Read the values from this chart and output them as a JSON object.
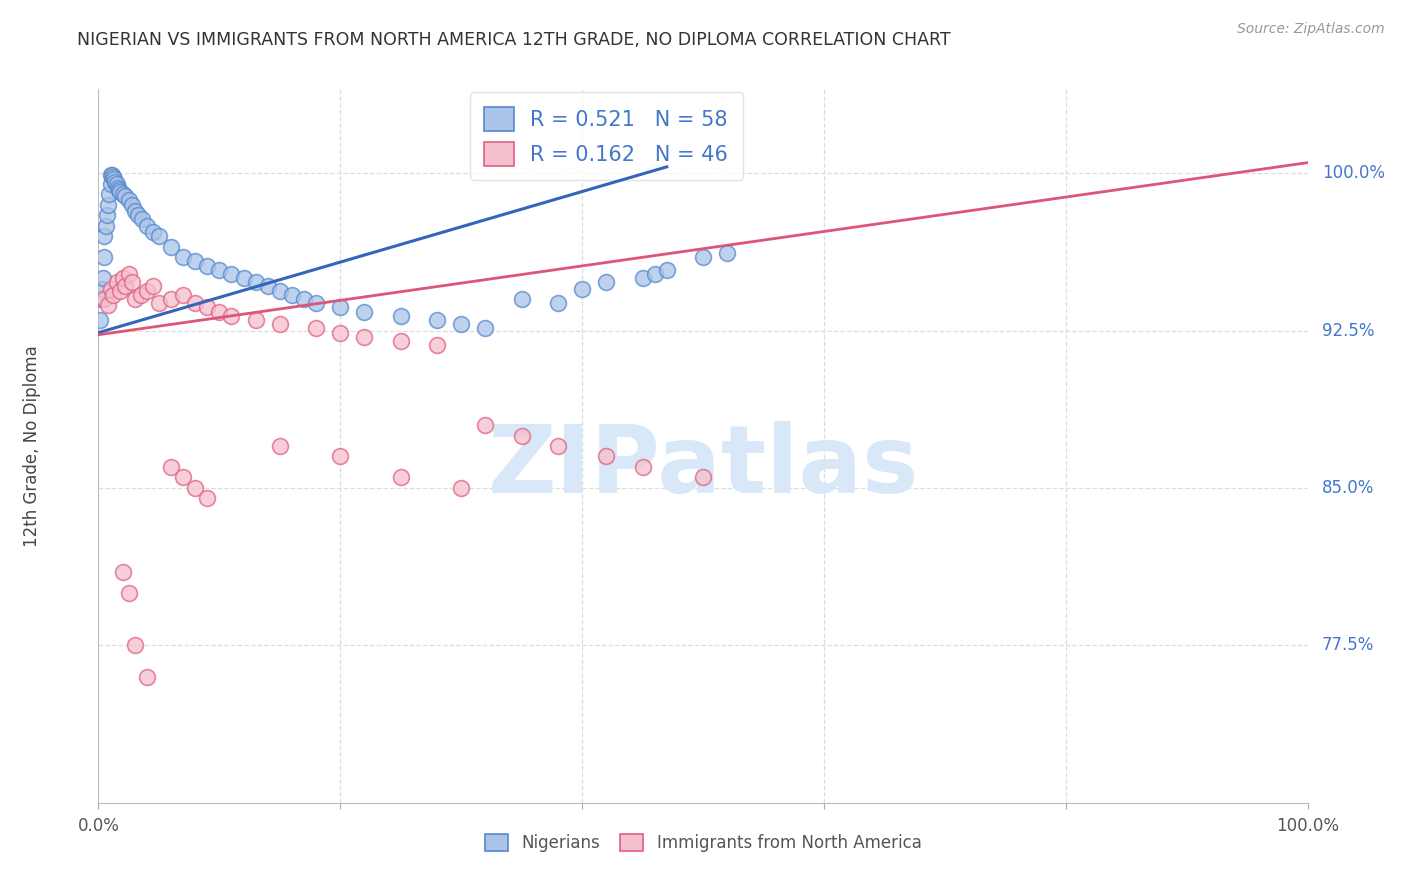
{
  "title": "NIGERIAN VS IMMIGRANTS FROM NORTH AMERICA 12TH GRADE, NO DIPLOMA CORRELATION CHART",
  "source": "Source: ZipAtlas.com",
  "ylabel": "12th Grade, No Diploma",
  "xlim": [
    0.0,
    1.0
  ],
  "ylim": [
    0.7,
    1.04
  ],
  "yticks": [
    0.775,
    0.85,
    0.925,
    1.0
  ],
  "ytick_labels": [
    "77.5%",
    "85.0%",
    "92.5%",
    "100.0%"
  ],
  "xticks": [
    0.0,
    0.2,
    0.4,
    0.6,
    0.8,
    1.0
  ],
  "xtick_labels": [
    "0.0%",
    "",
    "",
    "",
    "",
    "100.0%"
  ],
  "legend_labels": [
    "Nigerians",
    "Immigrants from North America"
  ],
  "blue_R": 0.521,
  "blue_N": 58,
  "pink_R": 0.162,
  "pink_N": 46,
  "blue_fill_color": "#aac4e8",
  "pink_fill_color": "#f5c0ce",
  "blue_edge_color": "#5588cc",
  "pink_edge_color": "#e06080",
  "blue_line_color": "#3366bb",
  "pink_line_color": "#dd5577",
  "blue_scatter_x": [
    0.001,
    0.002,
    0.003,
    0.004,
    0.005,
    0.005,
    0.006,
    0.007,
    0.008,
    0.009,
    0.01,
    0.01,
    0.011,
    0.012,
    0.013,
    0.014,
    0.015,
    0.016,
    0.017,
    0.018,
    0.02,
    0.022,
    0.025,
    0.028,
    0.03,
    0.033,
    0.036,
    0.04,
    0.045,
    0.05,
    0.06,
    0.07,
    0.08,
    0.09,
    0.1,
    0.11,
    0.12,
    0.13,
    0.14,
    0.15,
    0.16,
    0.17,
    0.18,
    0.2,
    0.22,
    0.25,
    0.28,
    0.3,
    0.32,
    0.35,
    0.38,
    0.4,
    0.42,
    0.45,
    0.46,
    0.47,
    0.5,
    0.52
  ],
  "blue_scatter_y": [
    0.93,
    0.94,
    0.945,
    0.95,
    0.96,
    0.97,
    0.975,
    0.98,
    0.985,
    0.99,
    0.995,
    0.999,
    0.999,
    0.998,
    0.997,
    0.996,
    0.995,
    0.993,
    0.992,
    0.991,
    0.99,
    0.989,
    0.987,
    0.985,
    0.982,
    0.98,
    0.978,
    0.975,
    0.972,
    0.97,
    0.965,
    0.96,
    0.958,
    0.956,
    0.954,
    0.952,
    0.95,
    0.948,
    0.946,
    0.944,
    0.942,
    0.94,
    0.938,
    0.936,
    0.934,
    0.932,
    0.93,
    0.928,
    0.926,
    0.94,
    0.938,
    0.945,
    0.948,
    0.95,
    0.952,
    0.954,
    0.96,
    0.962
  ],
  "pink_scatter_x": [
    0.005,
    0.008,
    0.01,
    0.012,
    0.015,
    0.018,
    0.02,
    0.022,
    0.025,
    0.028,
    0.03,
    0.035,
    0.04,
    0.045,
    0.05,
    0.06,
    0.07,
    0.08,
    0.09,
    0.1,
    0.11,
    0.13,
    0.15,
    0.18,
    0.2,
    0.22,
    0.25,
    0.28,
    0.32,
    0.35,
    0.38,
    0.42,
    0.45,
    0.5,
    0.15,
    0.2,
    0.25,
    0.3,
    0.06,
    0.07,
    0.08,
    0.09,
    0.02,
    0.025,
    0.03,
    0.04
  ],
  "pink_scatter_y": [
    0.94,
    0.937,
    0.945,
    0.942,
    0.948,
    0.944,
    0.95,
    0.946,
    0.952,
    0.948,
    0.94,
    0.942,
    0.944,
    0.946,
    0.938,
    0.94,
    0.942,
    0.938,
    0.936,
    0.934,
    0.932,
    0.93,
    0.928,
    0.926,
    0.924,
    0.922,
    0.92,
    0.918,
    0.88,
    0.875,
    0.87,
    0.865,
    0.86,
    0.855,
    0.87,
    0.865,
    0.855,
    0.85,
    0.86,
    0.855,
    0.85,
    0.845,
    0.81,
    0.8,
    0.775,
    0.76
  ],
  "blue_trend_x": [
    0.0,
    0.47
  ],
  "blue_trend_y": [
    0.924,
    1.003
  ],
  "pink_trend_x": [
    0.0,
    1.0
  ],
  "pink_trend_y": [
    0.923,
    1.005
  ],
  "watermark_text": "ZIPatlas",
  "watermark_color": "#d8e8f8",
  "background_color": "#ffffff",
  "grid_color": "#dddddd"
}
